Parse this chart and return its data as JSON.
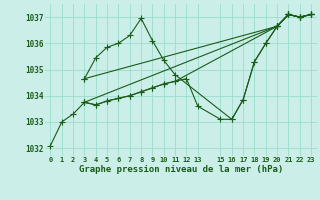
{
  "title": "Graphe pression niveau de la mer (hPa)",
  "background_color": "#cceee8",
  "grid_color": "#99ddcc",
  "line_color": "#1a5c1a",
  "ylim": [
    1031.7,
    1037.5
  ],
  "yticks": [
    1032,
    1033,
    1034,
    1035,
    1036,
    1037
  ],
  "xlim": [
    -0.5,
    23.5
  ],
  "xtick_positions": [
    0,
    1,
    2,
    3,
    4,
    5,
    6,
    7,
    8,
    9,
    10,
    11,
    12,
    13,
    15,
    16,
    17,
    18,
    19,
    20,
    21,
    22,
    23
  ],
  "xtick_labels": [
    "0",
    "1",
    "2",
    "3",
    "4",
    "5",
    "6",
    "7",
    "8",
    "9",
    "10",
    "11",
    "12",
    "13",
    "15",
    "16",
    "17",
    "18",
    "19",
    "20",
    "21",
    "22",
    "23"
  ],
  "lines": [
    {
      "x": [
        0,
        1,
        2,
        3,
        4,
        5,
        6,
        7,
        8,
        9,
        10,
        11,
        12,
        13,
        15,
        16,
        17,
        18,
        19,
        20,
        21,
        22,
        23
      ],
      "y": [
        1032.1,
        1033.0,
        1033.3,
        1033.75,
        1033.65,
        1033.8,
        1033.9,
        1034.0,
        1034.15,
        1034.3,
        1034.45,
        1034.55,
        1034.65,
        1033.6,
        1033.1,
        1033.1,
        1033.85,
        1035.3,
        1036.0,
        1036.65,
        1037.1,
        1037.0,
        1037.1
      ]
    },
    {
      "x": [
        3,
        4,
        5,
        6,
        7,
        8,
        9,
        10,
        11,
        16,
        17,
        18,
        19,
        20,
        21,
        22,
        23
      ],
      "y": [
        1034.65,
        1035.45,
        1035.85,
        1036.0,
        1036.3,
        1036.95,
        1036.1,
        1035.35,
        1034.8,
        1033.1,
        1033.85,
        1035.3,
        1036.0,
        1036.65,
        1037.1,
        1037.0,
        1037.1
      ]
    },
    {
      "x": [
        3,
        4,
        5,
        6,
        7,
        8,
        9,
        10,
        11,
        20,
        21,
        22,
        23
      ],
      "y": [
        1033.75,
        1033.65,
        1033.8,
        1033.9,
        1034.0,
        1034.15,
        1034.3,
        1034.45,
        1034.55,
        1036.65,
        1037.1,
        1037.0,
        1037.1
      ]
    },
    {
      "x": [
        3,
        20,
        21,
        22,
        23
      ],
      "y": [
        1033.75,
        1036.65,
        1037.1,
        1037.0,
        1037.1
      ]
    },
    {
      "x": [
        3,
        20,
        21,
        22,
        23
      ],
      "y": [
        1034.65,
        1036.65,
        1037.1,
        1037.0,
        1037.1
      ]
    }
  ]
}
